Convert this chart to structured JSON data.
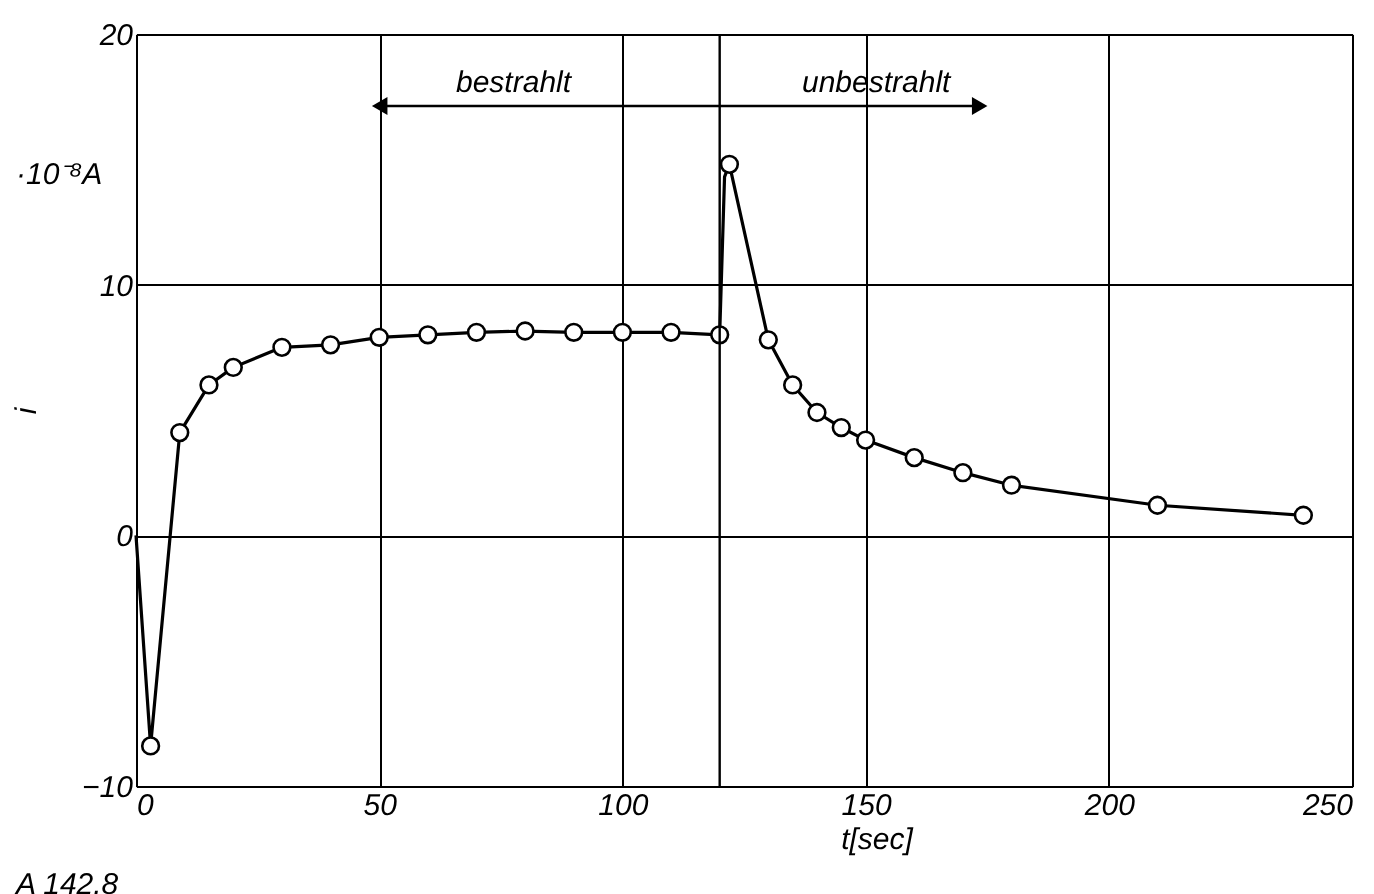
{
  "chart_data": {
    "type": "line",
    "xlabel": "t[sec]",
    "ylabel": "i",
    "xlim": [
      0,
      250
    ],
    "ylim": [
      -10,
      20
    ],
    "xticks": [
      0,
      50,
      100,
      150,
      200,
      250
    ],
    "yticks": [
      -10,
      0,
      10,
      20
    ],
    "grid": true,
    "series": [
      {
        "color": "#000000",
        "marker": "none",
        "x": [
          0,
          3,
          9,
          15,
          20,
          30,
          40,
          50,
          60,
          70,
          80,
          90,
          100,
          110,
          120,
          121,
          122,
          130,
          135,
          140,
          145,
          150,
          160,
          170,
          180,
          210,
          240
        ],
        "values": [
          0,
          -8.4,
          4.1,
          6.0,
          6.7,
          7.5,
          7.6,
          7.9,
          8.0,
          8.1,
          8.15,
          8.1,
          8.1,
          8.1,
          8.0,
          14.3,
          14.8,
          7.8,
          6.0,
          4.9,
          4.3,
          3.8,
          3.1,
          2.5,
          2.0,
          1.2,
          0.8
        ]
      },
      {
        "type": "scatter",
        "color": "#000000",
        "marker": "circle",
        "x": [
          3,
          9,
          15,
          20,
          30,
          40,
          50,
          60,
          70,
          80,
          90,
          100,
          110,
          120,
          122,
          130,
          135,
          140,
          145,
          150,
          160,
          170,
          180,
          210,
          240
        ],
        "values": [
          -8.4,
          4.1,
          6.0,
          6.7,
          7.5,
          7.6,
          7.9,
          8.0,
          8.1,
          8.15,
          8.1,
          8.1,
          8.1,
          8.0,
          14.8,
          7.8,
          6.0,
          4.9,
          4.3,
          3.8,
          3.1,
          2.5,
          2.0,
          1.2,
          0.8
        ]
      }
    ],
    "ref_lines": [
      {
        "axis": "x",
        "value": 120
      }
    ],
    "annotations": [
      "bestrahlt",
      "unbestrahlt",
      "·10⁻⁸A",
      "A 142.8"
    ]
  }
}
